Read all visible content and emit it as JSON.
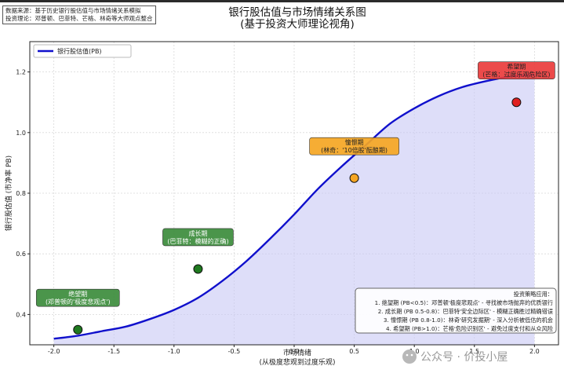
{
  "source_note": {
    "line1": "数据来源：基于历史银行股估值与市场情绪关系模拟",
    "line2": "投资理论：邓普顿、巴菲特、芒格、林奇等大师观点整合"
  },
  "watermark": "公众号 · 价投小屋",
  "chart_data": {
    "type": "line",
    "title": "银行股估值与市场情绪关系图",
    "subtitle": "(基于投资大师理论视角)",
    "xlabel": "市场情绪",
    "xlabel2": "(从极度悲观到过度乐观)",
    "ylabel": "银行股估值 (市净率 PB)",
    "xlim": [
      -2.2,
      2.2
    ],
    "ylim": [
      0.3,
      1.3
    ],
    "xticks": [
      -2.0,
      -1.5,
      -1.0,
      -0.5,
      0.0,
      0.5,
      1.0,
      1.5,
      2.0
    ],
    "xtick_labels": [
      "-2.0",
      "-1.5",
      "-1.0",
      "-0.5",
      "0.0",
      "0.5",
      "1.0",
      "1.5",
      "2.0"
    ],
    "yticks": [
      0.4,
      0.6,
      0.8,
      1.0,
      1.2
    ],
    "ytick_labels": [
      "0.4",
      "0.6",
      "0.8",
      "1.0",
      "1.2"
    ],
    "grid": true,
    "legend_position": "top-left",
    "curve": {
      "name": "银行股估值(PB)",
      "color": "#1010cc",
      "fill_color": "#c8c8f5",
      "x": [
        -2.0,
        -1.8,
        -1.6,
        -1.4,
        -1.2,
        -1.0,
        -0.8,
        -0.6,
        -0.4,
        -0.2,
        0.0,
        0.2,
        0.4,
        0.6,
        0.8,
        1.0,
        1.2,
        1.4,
        1.6,
        1.8,
        2.0
      ],
      "y": [
        0.32,
        0.33,
        0.345,
        0.36,
        0.385,
        0.415,
        0.455,
        0.51,
        0.575,
        0.65,
        0.73,
        0.815,
        0.89,
        0.96,
        1.03,
        1.08,
        1.12,
        1.15,
        1.17,
        1.185,
        1.19
      ]
    },
    "points": [
      {
        "x": -1.8,
        "y": 0.35,
        "color": "#1f7a1f",
        "label_x": -1.8,
        "label_y": 0.455,
        "line1": "绝望期",
        "line2": "(邓普顿的'极度悲观点')",
        "box": "#3c8c3c",
        "text_color": "#ffffff"
      },
      {
        "x": -0.8,
        "y": 0.55,
        "color": "#1f7a1f",
        "label_x": -0.8,
        "label_y": 0.655,
        "line1": "成长期",
        "line2": "(巴菲特：模糊的正确)",
        "box": "#3c8c3c",
        "text_color": "#ffffff"
      },
      {
        "x": 0.5,
        "y": 0.85,
        "color": "#f5a623",
        "label_x": 0.5,
        "label_y": 0.955,
        "line1": "憧憬期",
        "line2": "(林奇：'10倍股'酝酿期)",
        "box": "#f5a623",
        "text_color": "#222222"
      },
      {
        "x": 1.85,
        "y": 1.1,
        "color": "#e02020",
        "label_x": 1.85,
        "label_y": 1.205,
        "line1": "希望期",
        "line2": "(芒格：过度乐观危险区)",
        "box": "#ea3c3c",
        "text_color": "#222222"
      }
    ],
    "strategy_box": {
      "title": "投资策略应用：",
      "lines": [
        "1. 绝望期 (PB<0.5)：邓普顿'极度悲观点' - 寻找被市场抛弃的优质银行",
        "2. 成长期 (PB 0.5-0.8)：巴菲特'安全边际区' - 模糊正确胜过精确错误",
        "3. 憧憬期 (PB 0.8-1.0)：林奇'研究发掘期' - 深入分析被低估的机会",
        "4. 希望期 (PB>1.0)：芒格'危险识别区' - 避免过度支付和从众风险"
      ]
    }
  }
}
